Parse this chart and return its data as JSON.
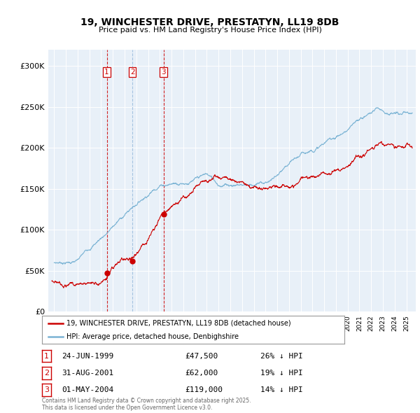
{
  "title_line1": "19, WINCHESTER DRIVE, PRESTATYN, LL19 8DB",
  "title_line2": "Price paid vs. HM Land Registry's House Price Index (HPI)",
  "hpi_color": "#7ab3d4",
  "price_color": "#cc0000",
  "vline_color_red": "#cc0000",
  "vline_color_blue": "#99bbdd",
  "background_color": "#ffffff",
  "plot_bg_color": "#e8f0f8",
  "grid_color": "#ffffff",
  "ylim": [
    0,
    320000
  ],
  "yticks": [
    0,
    50000,
    100000,
    150000,
    200000,
    250000,
    300000
  ],
  "ytick_labels": [
    "£0",
    "£50K",
    "£100K",
    "£150K",
    "£200K",
    "£250K",
    "£300K"
  ],
  "sale_dates_num": [
    1999.48,
    2001.66,
    2004.33
  ],
  "sale_prices": [
    47500,
    62000,
    119000
  ],
  "sale_labels": [
    "1",
    "2",
    "3"
  ],
  "vline_styles": [
    "red",
    "blue",
    "red"
  ],
  "legend_house": "19, WINCHESTER DRIVE, PRESTATYN, LL19 8DB (detached house)",
  "legend_hpi": "HPI: Average price, detached house, Denbighshire",
  "table_rows": [
    {
      "num": "1",
      "date": "24-JUN-1999",
      "price": "£47,500",
      "hpi": "26% ↓ HPI"
    },
    {
      "num": "2",
      "date": "31-AUG-2001",
      "price": "£62,000",
      "hpi": "19% ↓ HPI"
    },
    {
      "num": "3",
      "date": "01-MAY-2004",
      "price": "£119,000",
      "hpi": "14% ↓ HPI"
    }
  ],
  "footnote": "Contains HM Land Registry data © Crown copyright and database right 2025.\nThis data is licensed under the Open Government Licence v3.0.",
  "xmin": 1994.5,
  "xmax": 2025.8
}
